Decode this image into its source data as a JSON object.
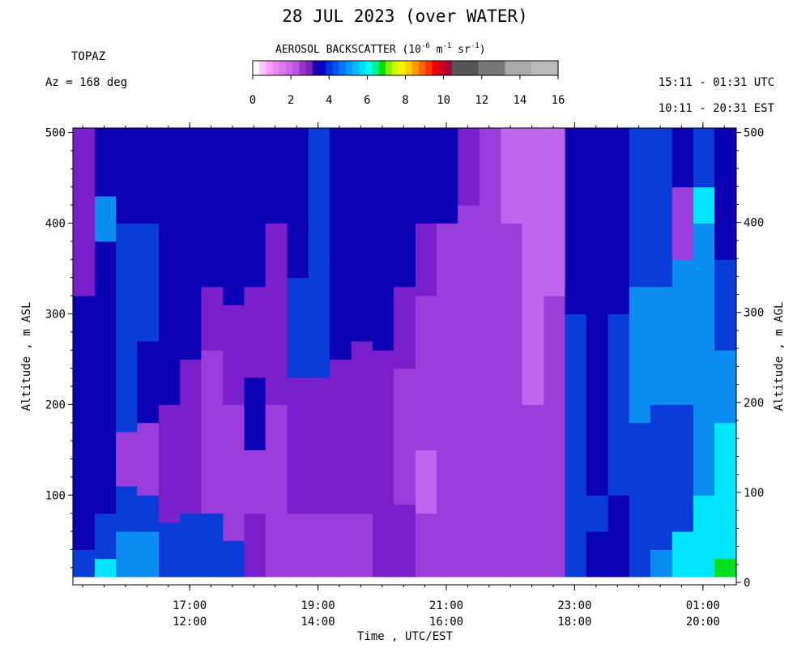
{
  "header": {
    "title": "28 JUL 2023 (over WATER)",
    "instrument": "TOPAZ",
    "azimuth": "Az = 168 deg",
    "utc_range": "15:11 - 01:31 UTC",
    "est_range": "10:11 - 20:31 EST"
  },
  "colorbar": {
    "title_main": "AEROSOL BACKSCATTER (10",
    "title_exp1": "-6",
    "title_mid": " m",
    "title_exp2": "-1",
    "title_mid2": " sr",
    "title_exp3": "-1",
    "title_end": ")",
    "tick_labels": [
      "0",
      "2",
      "4",
      "6",
      "8",
      "10",
      "12",
      "14",
      "16"
    ],
    "tick_values": [
      0,
      2,
      4,
      6,
      8,
      10,
      12,
      14,
      16
    ],
    "colors": [
      "#ffffff",
      "#ffc8ff",
      "#ff9aff",
      "#ee88ee",
      "#dd77ee",
      "#cc66ee",
      "#bb55dd",
      "#9933cc",
      "#7722bb",
      "#1c00aa",
      "#0000cc",
      "#0033dd",
      "#0055ee",
      "#0077ff",
      "#0099ff",
      "#00bbff",
      "#00ddff",
      "#00ffee",
      "#00ee99",
      "#00dd00",
      "#88ee00",
      "#ccff00",
      "#ffee00",
      "#ffcc00",
      "#ff9900",
      "#ff6600",
      "#ff3300",
      "#ee0000",
      "#cc0022",
      "#aa0033",
      "#555555",
      "#555555",
      "#555555",
      "#555555",
      "#777777",
      "#777777",
      "#777777",
      "#777777",
      "#aaaaaa",
      "#aaaaaa",
      "#aaaaaa",
      "#aaaaaa",
      "#bbbbbb",
      "#bbbbbb",
      "#bbbbbb",
      "#bbbbbb"
    ]
  },
  "axes": {
    "y_left_label": "Altitude , m ASL",
    "y_right_label": "Altitude , m AGL",
    "x_label": "Time , UTC/EST"
  },
  "chart_data": {
    "type": "heatmap",
    "title": "28 JUL 2023 (over WATER)",
    "xlabel": "Time , UTC/EST",
    "ylabel": "Altitude , m ASL",
    "y2label": "Altitude , m AGL",
    "x_utc_hours": [
      15.18,
      25.52
    ],
    "ylim_left": [
      10,
      505
    ],
    "ylim_right": [
      0,
      505
    ],
    "x_ticks": [
      {
        "utc": "17:00",
        "est": "12:00",
        "hour": 17
      },
      {
        "utc": "19:00",
        "est": "14:00",
        "hour": 19
      },
      {
        "utc": "21:00",
        "est": "16:00",
        "hour": 21
      },
      {
        "utc": "23:00",
        "est": "18:00",
        "hour": 23
      },
      {
        "utc": "01:00",
        "est": "20:00",
        "hour": 25
      }
    ],
    "y_left_ticks": [
      100,
      200,
      300,
      400,
      500
    ],
    "y_right_ticks": [
      0,
      100,
      200,
      300,
      400,
      500
    ],
    "column_profiles": [
      {
        "hours": [
          15.18,
          15.52
        ],
        "layers": [
          [
            10,
            40,
            "blue"
          ],
          [
            40,
            110,
            "dblue"
          ],
          [
            110,
            230,
            "dblue"
          ],
          [
            230,
            320,
            "dblue"
          ],
          [
            320,
            505,
            "purple"
          ]
        ]
      },
      {
        "hours": [
          15.52,
          15.85
        ],
        "layers": [
          [
            10,
            30,
            "cyan"
          ],
          [
            30,
            80,
            "blue"
          ],
          [
            80,
            200,
            "dblue"
          ],
          [
            200,
            380,
            "dblue"
          ],
          [
            380,
            430,
            "lblue"
          ],
          [
            430,
            505,
            "dblue"
          ]
        ]
      },
      {
        "hours": [
          15.85,
          16.18
        ],
        "layers": [
          [
            10,
            60,
            "lblue"
          ],
          [
            60,
            110,
            "blue"
          ],
          [
            110,
            170,
            "violet"
          ],
          [
            170,
            300,
            "blue"
          ],
          [
            300,
            400,
            "blue"
          ],
          [
            400,
            505,
            "dblue"
          ]
        ]
      },
      {
        "hours": [
          16.18,
          16.52
        ],
        "layers": [
          [
            10,
            60,
            "lblue"
          ],
          [
            60,
            100,
            "blue"
          ],
          [
            100,
            180,
            "violet"
          ],
          [
            180,
            270,
            "dblue"
          ],
          [
            270,
            400,
            "blue"
          ],
          [
            400,
            505,
            "dblue"
          ]
        ]
      },
      {
        "hours": [
          16.52,
          16.85
        ],
        "layers": [
          [
            10,
            70,
            "blue"
          ],
          [
            70,
            200,
            "purple"
          ],
          [
            200,
            330,
            "dblue"
          ],
          [
            330,
            505,
            "dblue"
          ]
        ]
      },
      {
        "hours": [
          16.85,
          17.18
        ],
        "layers": [
          [
            10,
            80,
            "blue"
          ],
          [
            80,
            250,
            "purple"
          ],
          [
            250,
            360,
            "dblue"
          ],
          [
            360,
            505,
            "dblue"
          ]
        ]
      },
      {
        "hours": [
          17.18,
          17.52
        ],
        "layers": [
          [
            10,
            80,
            "blue"
          ],
          [
            80,
            260,
            "violet"
          ],
          [
            260,
            330,
            "purple"
          ],
          [
            330,
            505,
            "dblue"
          ]
        ]
      },
      {
        "hours": [
          17.52,
          17.85
        ],
        "layers": [
          [
            10,
            50,
            "blue"
          ],
          [
            50,
            200,
            "violet"
          ],
          [
            200,
            310,
            "purple"
          ],
          [
            310,
            505,
            "dblue"
          ]
        ]
      },
      {
        "hours": [
          17.85,
          18.18
        ],
        "layers": [
          [
            10,
            80,
            "purple"
          ],
          [
            80,
            150,
            "violet"
          ],
          [
            150,
            230,
            "dblue"
          ],
          [
            230,
            330,
            "purple"
          ],
          [
            330,
            505,
            "dblue"
          ]
        ]
      },
      {
        "hours": [
          18.18,
          18.52
        ],
        "layers": [
          [
            10,
            60,
            "violet"
          ],
          [
            60,
            200,
            "violet"
          ],
          [
            200,
            400,
            "purple"
          ],
          [
            400,
            505,
            "dblue"
          ]
        ]
      },
      {
        "hours": [
          18.52,
          18.85
        ],
        "layers": [
          [
            10,
            80,
            "violet"
          ],
          [
            80,
            230,
            "purple"
          ],
          [
            230,
            340,
            "blue"
          ],
          [
            340,
            505,
            "dblue"
          ]
        ]
      },
      {
        "hours": [
          18.85,
          19.18
        ],
        "layers": [
          [
            10,
            80,
            "violet"
          ],
          [
            80,
            230,
            "purple"
          ],
          [
            230,
            340,
            "blue"
          ],
          [
            340,
            505,
            "blue"
          ]
        ]
      },
      {
        "hours": [
          19.18,
          19.52
        ],
        "layers": [
          [
            10,
            80,
            "violet"
          ],
          [
            80,
            250,
            "purple"
          ],
          [
            250,
            360,
            "dblue"
          ],
          [
            360,
            505,
            "dblue"
          ]
        ]
      },
      {
        "hours": [
          19.52,
          19.85
        ],
        "layers": [
          [
            10,
            80,
            "violet"
          ],
          [
            80,
            270,
            "purple"
          ],
          [
            270,
            505,
            "dblue"
          ]
        ]
      },
      {
        "hours": [
          19.85,
          20.18
        ],
        "layers": [
          [
            10,
            90,
            "purple"
          ],
          [
            90,
            260,
            "purple"
          ],
          [
            260,
            505,
            "dblue"
          ]
        ]
      },
      {
        "hours": [
          20.18,
          20.52
        ],
        "layers": [
          [
            10,
            90,
            "purple"
          ],
          [
            90,
            240,
            "violet"
          ],
          [
            240,
            330,
            "purple"
          ],
          [
            330,
            505,
            "dblue"
          ]
        ]
      },
      {
        "hours": [
          20.52,
          20.85
        ],
        "layers": [
          [
            10,
            80,
            "violet"
          ],
          [
            80,
            150,
            "lviolet"
          ],
          [
            150,
            320,
            "violet"
          ],
          [
            320,
            400,
            "purple"
          ],
          [
            400,
            505,
            "dblue"
          ]
        ]
      },
      {
        "hours": [
          20.85,
          21.18
        ],
        "layers": [
          [
            10,
            80,
            "violet"
          ],
          [
            80,
            200,
            "violet"
          ],
          [
            200,
            400,
            "violet"
          ],
          [
            400,
            505,
            "dblue"
          ]
        ]
      },
      {
        "hours": [
          21.18,
          21.52
        ],
        "layers": [
          [
            10,
            80,
            "violet"
          ],
          [
            80,
            300,
            "violet"
          ],
          [
            300,
            420,
            "violet"
          ],
          [
            420,
            505,
            "purple"
          ]
        ]
      },
      {
        "hours": [
          21.52,
          21.85
        ],
        "layers": [
          [
            10,
            80,
            "violet"
          ],
          [
            80,
            250,
            "violet"
          ],
          [
            250,
            505,
            "violet"
          ]
        ]
      },
      {
        "hours": [
          21.85,
          22.18
        ],
        "layers": [
          [
            10,
            80,
            "violet"
          ],
          [
            80,
            200,
            "violet"
          ],
          [
            200,
            400,
            "violet"
          ],
          [
            400,
            505,
            "lviolet"
          ]
        ]
      },
      {
        "hours": [
          22.18,
          22.52
        ],
        "layers": [
          [
            10,
            80,
            "violet"
          ],
          [
            80,
            200,
            "violet"
          ],
          [
            200,
            320,
            "lviolet"
          ],
          [
            320,
            505,
            "lviolet"
          ]
        ]
      },
      {
        "hours": [
          22.52,
          22.85
        ],
        "layers": [
          [
            10,
            80,
            "violet"
          ],
          [
            80,
            200,
            "violet"
          ],
          [
            200,
            320,
            "violet"
          ],
          [
            320,
            505,
            "lviolet"
          ]
        ]
      },
      {
        "hours": [
          22.85,
          23.18
        ],
        "layers": [
          [
            10,
            100,
            "blue"
          ],
          [
            100,
            300,
            "blue"
          ],
          [
            300,
            360,
            "dblue"
          ],
          [
            360,
            505,
            "dblue"
          ]
        ]
      },
      {
        "hours": [
          23.18,
          23.52
        ],
        "layers": [
          [
            10,
            60,
            "dblue"
          ],
          [
            60,
            100,
            "blue"
          ],
          [
            100,
            400,
            "dblue"
          ],
          [
            400,
            505,
            "dblue"
          ]
        ]
      },
      {
        "hours": [
          23.52,
          23.85
        ],
        "layers": [
          [
            10,
            100,
            "dblue"
          ],
          [
            100,
            300,
            "blue"
          ],
          [
            300,
            505,
            "dblue"
          ]
        ]
      },
      {
        "hours": [
          23.85,
          24.18
        ],
        "layers": [
          [
            10,
            180,
            "blue"
          ],
          [
            180,
            330,
            "lblue"
          ],
          [
            330,
            505,
            "blue"
          ]
        ]
      },
      {
        "hours": [
          24.18,
          24.52
        ],
        "layers": [
          [
            10,
            40,
            "lblue"
          ],
          [
            40,
            200,
            "blue"
          ],
          [
            200,
            330,
            "lblue"
          ],
          [
            330,
            505,
            "blue"
          ]
        ]
      },
      {
        "hours": [
          24.52,
          24.85
        ],
        "layers": [
          [
            10,
            60,
            "cyan"
          ],
          [
            60,
            200,
            "blue"
          ],
          [
            200,
            360,
            "lblue"
          ],
          [
            360,
            440,
            "violet"
          ],
          [
            440,
            505,
            "dblue"
          ]
        ]
      },
      {
        "hours": [
          24.85,
          25.18
        ],
        "layers": [
          [
            10,
            100,
            "cyan"
          ],
          [
            100,
            250,
            "lblue"
          ],
          [
            250,
            400,
            "lblue"
          ],
          [
            400,
            440,
            "cyan"
          ],
          [
            440,
            505,
            "blue"
          ]
        ]
      },
      {
        "hours": [
          25.18,
          25.52
        ],
        "layers": [
          [
            10,
            30,
            "green"
          ],
          [
            30,
            180,
            "cyan"
          ],
          [
            180,
            260,
            "lblue"
          ],
          [
            260,
            360,
            "blue"
          ],
          [
            360,
            505,
            "dblue"
          ]
        ]
      }
    ],
    "palette": {
      "dblue": "#0c00b4",
      "blue": "#0a3dd8",
      "lblue": "#0a8cf0",
      "cyan": "#00e6ff",
      "green": "#00dd22",
      "purple": "#7a1fcc",
      "violet": "#9b3ddb",
      "lviolet": "#c066ee"
    }
  }
}
